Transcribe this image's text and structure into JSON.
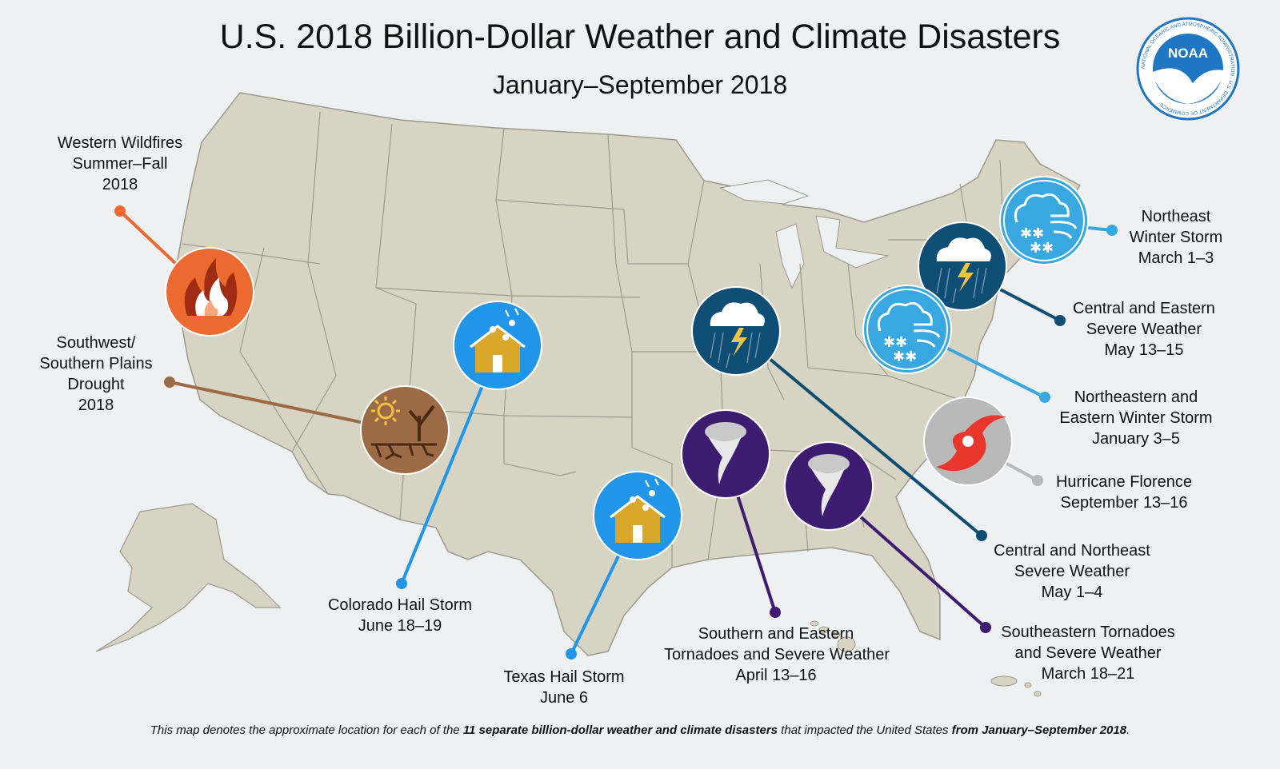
{
  "title": "U.S. 2018 Billion-Dollar Weather and Climate Disasters",
  "subtitle": "January–September 2018",
  "logo": {
    "text": "NOAA",
    "ring_text": "NATIONAL OCEANIC AND ATMOSPHERIC ADMINISTRATION · U.S. DEPARTMENT OF COMMERCE",
    "color": "#1f76c2"
  },
  "colors": {
    "background": "#eef0f1",
    "land": "#d8d4c4",
    "border": "#9c9a8e",
    "wildfire": "#ec6a2f",
    "drought": "#9c6b45",
    "hail": "#2196e8",
    "severe_weather": "#0f4e74",
    "tornado": "#3d1b71",
    "winter_storm": "#3aa8e0",
    "hurricane": "#b9b9b9"
  },
  "disasters": [
    {
      "id": "wildfires",
      "icon": "wildfire-icon",
      "lines": [
        "Western Wildfires",
        "Summer–Fall",
        "2018"
      ]
    },
    {
      "id": "drought",
      "icon": "drought-icon",
      "lines": [
        "Southwest/",
        "Southern Plains",
        "Drought",
        "2018"
      ]
    },
    {
      "id": "co-hail",
      "icon": "hail-house-icon",
      "lines": [
        "Colorado Hail Storm",
        "June 18–19"
      ]
    },
    {
      "id": "tx-hail",
      "icon": "hail-house-icon",
      "lines": [
        "Texas Hail Storm",
        "June 6"
      ]
    },
    {
      "id": "south-tornado",
      "icon": "tornado-icon",
      "lines": [
        "Southern and Eastern",
        "Tornadoes and Severe Weather",
        "April 13–16"
      ]
    },
    {
      "id": "se-tornado",
      "icon": "tornado-icon",
      "lines": [
        "Southeastern Tornadoes",
        "and Severe Weather",
        "March 18–21"
      ]
    },
    {
      "id": "cne-severe",
      "icon": "thunderstorm-icon",
      "lines": [
        "Central and Northeast",
        "Severe Weather",
        "May 1–4"
      ]
    },
    {
      "id": "ce-severe",
      "icon": "thunderstorm-icon",
      "lines": [
        "Central and Eastern",
        "Severe Weather",
        "May 13–15"
      ]
    },
    {
      "id": "ne-winter",
      "icon": "winter-storm-icon",
      "lines": [
        "Northeast",
        "Winter Storm",
        "March 1–3"
      ]
    },
    {
      "id": "nee-winter",
      "icon": "winter-storm-icon",
      "lines": [
        "Northeastern and",
        "Eastern Winter Storm",
        "January 3–5"
      ]
    },
    {
      "id": "florence",
      "icon": "hurricane-icon",
      "lines": [
        "Hurricane Florence",
        "September 13–16"
      ]
    }
  ],
  "footer": {
    "part1": "This map denotes the approximate location for each of the ",
    "bold1": "11 separate billion-dollar weather and climate disasters",
    "part2": " that impacted the United States ",
    "bold2": "from January–September 2018",
    "part3": "."
  }
}
